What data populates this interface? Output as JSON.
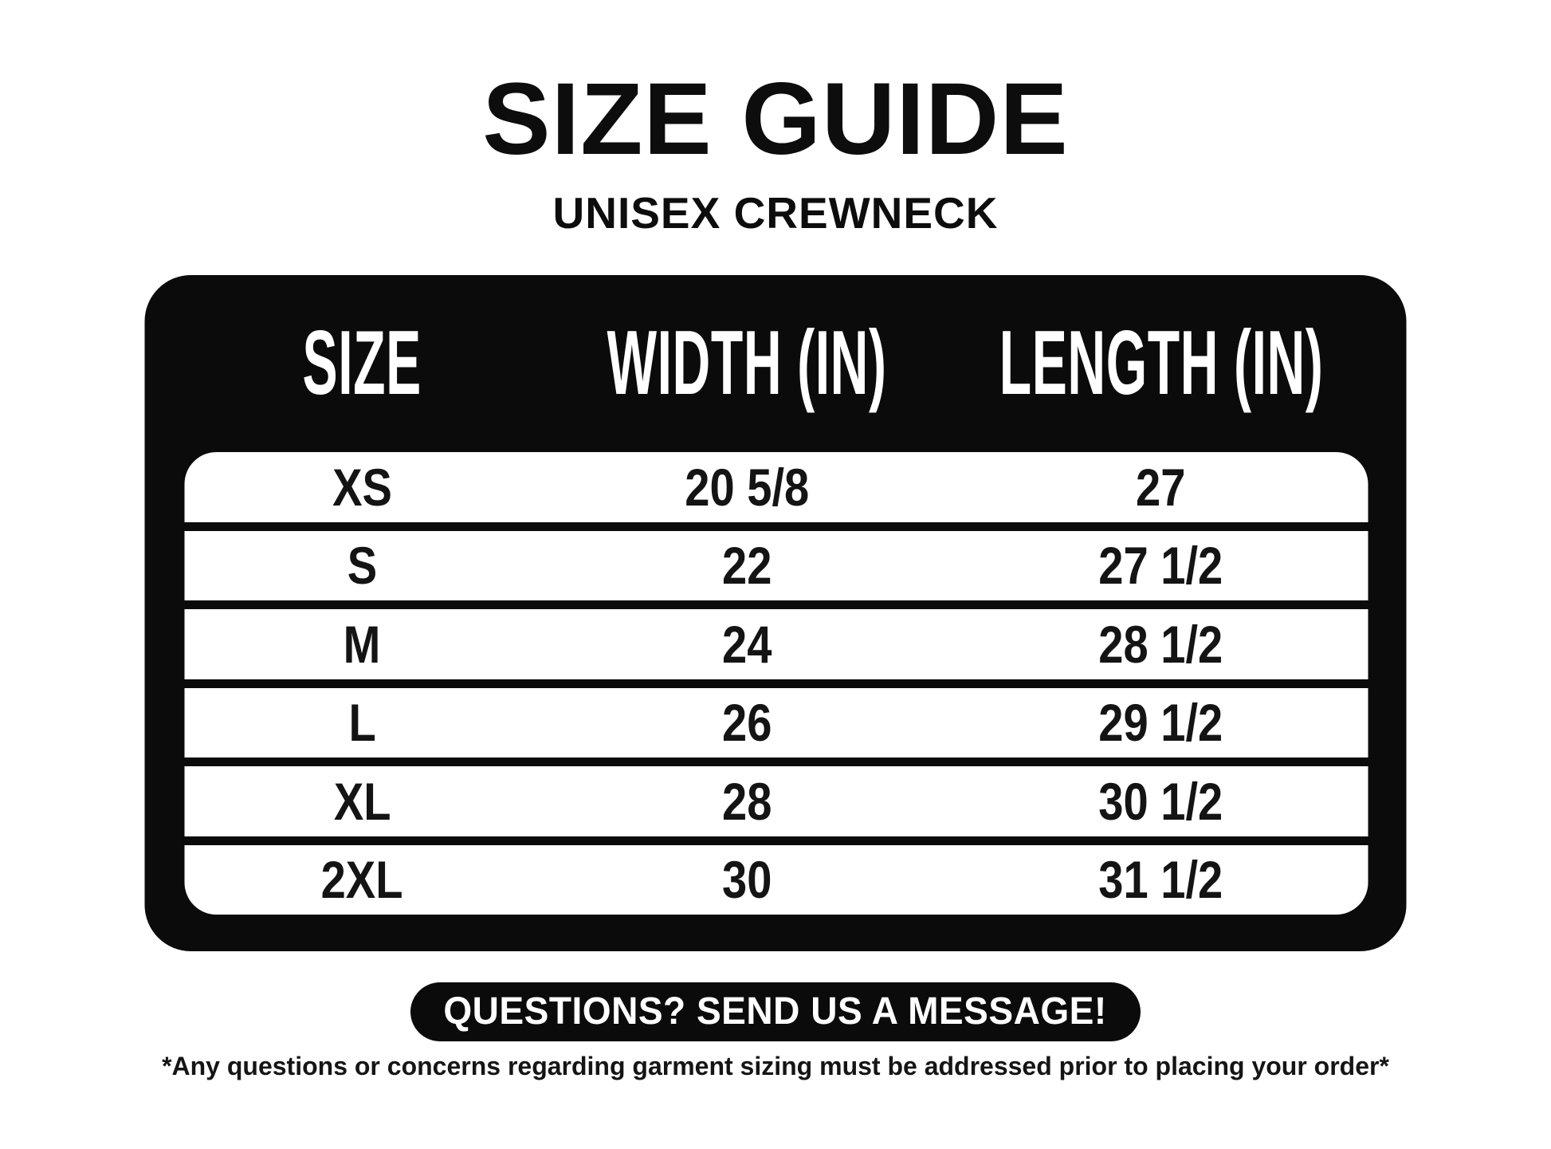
{
  "page": {
    "title": "SIZE GUIDE",
    "subtitle": "UNISEX CREWNECK",
    "background_color": "#ffffff",
    "panel_color": "#0b0b0b",
    "text_color": "#0d0d0d"
  },
  "size_table": {
    "columns": [
      "SIZE",
      "WIDTH (IN)",
      "LENGTH (IN)"
    ],
    "rows": [
      {
        "size": "XS",
        "width": "20 5/8",
        "length": "27"
      },
      {
        "size": "S",
        "width": "22",
        "length": "27 1/2"
      },
      {
        "size": "M",
        "width": "24",
        "length": "28 1/2"
      },
      {
        "size": "L",
        "width": "26",
        "length": "29 1/2"
      },
      {
        "size": "XL",
        "width": "28",
        "length": "30 1/2"
      },
      {
        "size": "2XL",
        "width": "30",
        "length": "31 1/2"
      }
    ]
  },
  "footer": {
    "button_label": "QUESTIONS? SEND US A MESSAGE!",
    "disclaimer": "*Any questions or concerns regarding garment sizing must be addressed prior to placing your order*"
  },
  "chart_data": {
    "type": "table",
    "title": "SIZE GUIDE",
    "subtitle": "UNISEX CREWNECK",
    "columns": [
      "SIZE",
      "WIDTH (IN)",
      "LENGTH (IN)"
    ],
    "rows": [
      [
        "XS",
        "20 5/8",
        "27"
      ],
      [
        "S",
        "22",
        "27 1/2"
      ],
      [
        "M",
        "24",
        "28 1/2"
      ],
      [
        "L",
        "26",
        "29 1/2"
      ],
      [
        "XL",
        "28",
        "30 1/2"
      ],
      [
        "2XL",
        "30",
        "31 1/2"
      ]
    ]
  }
}
